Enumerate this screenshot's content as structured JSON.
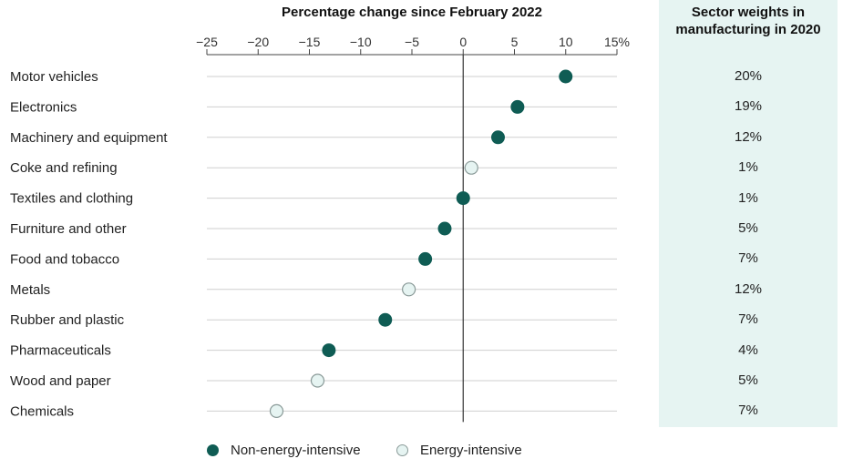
{
  "chart_data": {
    "type": "scatter",
    "title": "Percentage change since February 2022",
    "x_tick_labels": [
      "−25",
      "−20",
      "−15",
      "−10",
      "−5",
      "0",
      "5",
      "10",
      "15%"
    ],
    "x_ticks": [
      -25,
      -20,
      -15,
      -10,
      -5,
      0,
      5,
      10,
      15
    ],
    "xlim": [
      -25,
      15
    ],
    "categories": [
      "Motor vehicles",
      "Electronics",
      "Machinery and equipment",
      "Coke and refining",
      "Textiles and clothing",
      "Furniture and other",
      "Food and tobacco",
      "Metals",
      "Rubber and plastic",
      "Pharmaceuticals",
      "Wood and paper",
      "Chemicals"
    ],
    "values": [
      10,
      5.3,
      3.4,
      0.8,
      0,
      -1.8,
      -3.7,
      -5.3,
      -7.6,
      -13.1,
      -14.2,
      -18.2
    ],
    "group": [
      "non",
      "non",
      "non",
      "energy",
      "non",
      "non",
      "non",
      "energy",
      "non",
      "non",
      "energy",
      "energy"
    ],
    "legend": [
      {
        "key": "non",
        "label": "Non-energy-intensive",
        "color": "#0f5c54"
      },
      {
        "key": "energy",
        "label": "Energy-intensive",
        "color": "#e6f4f2"
      }
    ],
    "legend_position": "bottom",
    "grid": true
  },
  "weights": {
    "title_line1": "Sector weights in",
    "title_line2": "manufacturing in 2020",
    "values": [
      "20%",
      "19%",
      "12%",
      "1%",
      "1%",
      "5%",
      "7%",
      "12%",
      "7%",
      "4%",
      "5%",
      "7%"
    ]
  },
  "colors": {
    "non_energy": "#0f5c54",
    "energy_fill": "#e6f4f2",
    "energy_stroke": "#8a9a98",
    "grid": "#cfcfcf",
    "zero_line": "#333333",
    "panel_bg": "#e6f4f2"
  }
}
